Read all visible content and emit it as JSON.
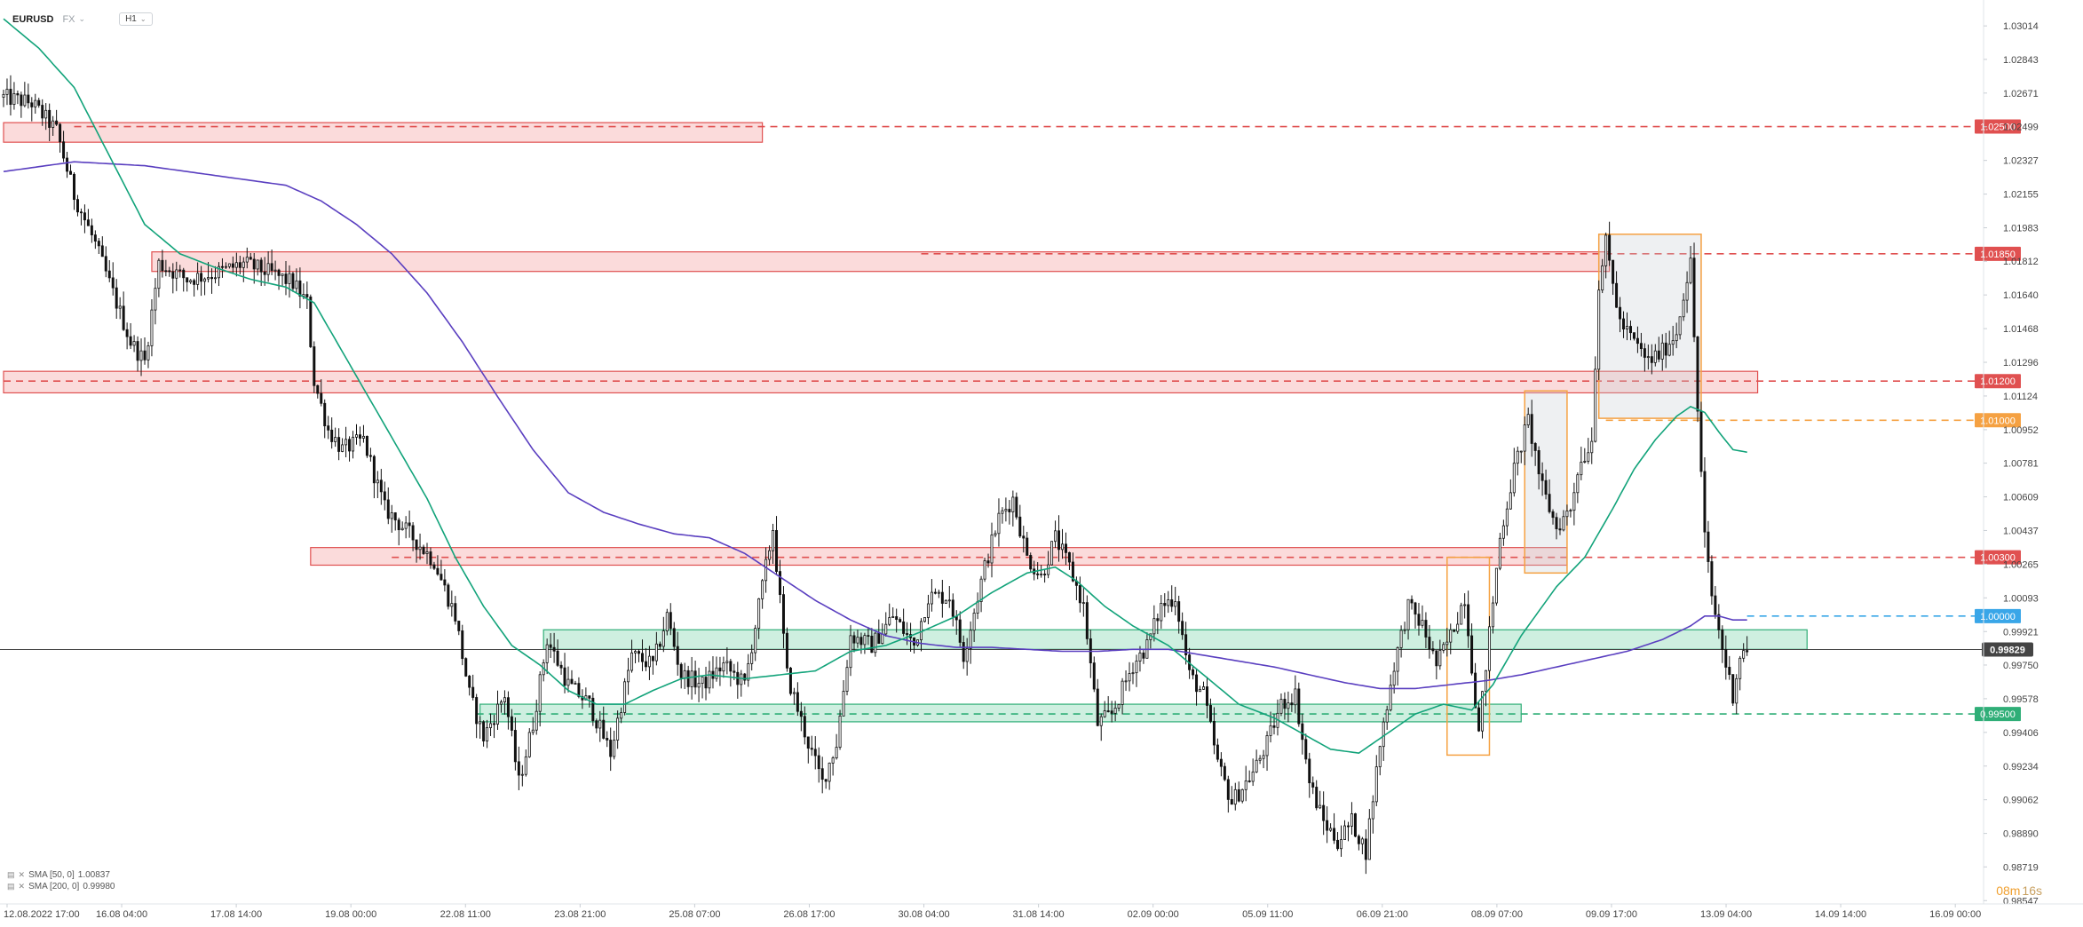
{
  "header": {
    "symbol": "EURUSD",
    "market": "FX",
    "timeframe": "H1"
  },
  "indicators": [
    {
      "label": "SMA [50, 0]",
      "value": "1.00837",
      "color": "#12a37a"
    },
    {
      "label": "SMA [200, 0]",
      "value": "0.99980",
      "color": "#5a3fc0"
    }
  ],
  "timer": {
    "minutes": "08m",
    "seconds": "16s"
  },
  "colors": {
    "bull": "#111111",
    "bear": "#111111",
    "sma50": "#12a37a",
    "sma200": "#5a3fc0",
    "resistance_fill": "rgba(240,110,110,0.25)",
    "resistance_stroke": "#e05050",
    "support_fill": "rgba(60,190,130,0.25)",
    "support_stroke": "#2fae77",
    "orange": "#f5a142",
    "gray_fill": "rgba(200,205,212,0.30)",
    "price_line": "#444444",
    "blue": "#39a6e8"
  },
  "chart_data": {
    "type": "candlestick",
    "symbol": "EURUSD",
    "timeframe": "H1",
    "y_ticks": [
      "1.03014",
      "1.02843",
      "1.02671",
      "1.02499",
      "1.02327",
      "1.02155",
      "1.01983",
      "1.01812",
      "1.01640",
      "1.01468",
      "1.01296",
      "1.01124",
      "1.00952",
      "1.00781",
      "1.00609",
      "1.00437",
      "1.00265",
      "1.00093",
      "0.99921",
      "0.99750",
      "0.99578",
      "0.99406",
      "0.99234",
      "0.99062",
      "0.98890",
      "0.98719",
      "0.98547"
    ],
    "ylim": [
      0.9853,
      1.0311
    ],
    "x_ticks": [
      "12.08.2022 17:00",
      "16.08 04:00",
      "17.08 14:00",
      "19.08 00:00",
      "22.08 11:00",
      "23.08 21:00",
      "25.08 07:00",
      "26.08 17:00",
      "30.08 04:00",
      "31.08 14:00",
      "02.09 00:00",
      "05.09 11:00",
      "06.09 21:00",
      "08.09 07:00",
      "09.09 17:00",
      "13.09 04:00",
      "14.09 14:00",
      "16.09 00:00"
    ],
    "bars_total": 560,
    "current_price": "0.99829",
    "current_price_value": 0.99829,
    "last_bar": 494,
    "price_path": [
      [
        0,
        1.0265
      ],
      [
        8,
        1.0262
      ],
      [
        15,
        1.0248
      ],
      [
        20,
        1.0215
      ],
      [
        26,
        1.019
      ],
      [
        30,
        1.017
      ],
      [
        36,
        1.014
      ],
      [
        40,
        1.013
      ],
      [
        44,
        1.018
      ],
      [
        52,
        1.0172
      ],
      [
        60,
        1.0175
      ],
      [
        68,
        1.018
      ],
      [
        76,
        1.0175
      ],
      [
        82,
        1.017
      ],
      [
        86,
        1.016
      ],
      [
        88,
        1.012
      ],
      [
        92,
        1.0095
      ],
      [
        96,
        1.0085
      ],
      [
        102,
        1.009
      ],
      [
        108,
        1.0055
      ],
      [
        116,
        1.004
      ],
      [
        122,
        1.0028
      ],
      [
        128,
        1.0
      ],
      [
        132,
        0.996
      ],
      [
        136,
        0.9938
      ],
      [
        142,
        0.996
      ],
      [
        146,
        0.9915
      ],
      [
        150,
        0.9945
      ],
      [
        154,
        0.9988
      ],
      [
        160,
        0.9965
      ],
      [
        166,
        0.9955
      ],
      [
        172,
        0.993
      ],
      [
        178,
        0.998
      ],
      [
        184,
        0.9975
      ],
      [
        188,
        1.0
      ],
      [
        192,
        0.997
      ],
      [
        198,
        0.9965
      ],
      [
        204,
        0.9975
      ],
      [
        210,
        0.9965
      ],
      [
        214,
        1.0005
      ],
      [
        218,
        1.0045
      ],
      [
        222,
        0.997
      ],
      [
        228,
        0.9935
      ],
      [
        232,
        0.9915
      ],
      [
        236,
        0.9935
      ],
      [
        240,
        0.999
      ],
      [
        246,
        0.9985
      ],
      [
        252,
        1.0
      ],
      [
        258,
        0.9985
      ],
      [
        262,
        1.001
      ],
      [
        268,
        1.001
      ],
      [
        272,
        0.998
      ],
      [
        278,
        1.0025
      ],
      [
        282,
        1.005
      ],
      [
        286,
        1.006
      ],
      [
        290,
        1.003
      ],
      [
        294,
        1.002
      ],
      [
        298,
        1.004
      ],
      [
        302,
        1.0025
      ],
      [
        306,
        1.0005
      ],
      [
        310,
        0.9945
      ],
      [
        314,
        0.995
      ],
      [
        320,
        0.9975
      ],
      [
        324,
        0.9985
      ],
      [
        328,
        1.0005
      ],
      [
        332,
        1.001
      ],
      [
        336,
        0.997
      ],
      [
        340,
        0.996
      ],
      [
        344,
        0.9925
      ],
      [
        348,
        0.9905
      ],
      [
        354,
        0.992
      ],
      [
        358,
        0.9935
      ],
      [
        362,
        0.9955
      ],
      [
        366,
        0.996
      ],
      [
        370,
        0.9915
      ],
      [
        374,
        0.9895
      ],
      [
        378,
        0.9885
      ],
      [
        382,
        0.9895
      ],
      [
        386,
        0.988
      ],
      [
        390,
        0.9935
      ],
      [
        394,
        0.9975
      ],
      [
        398,
        1.0005
      ],
      [
        402,
        0.9995
      ],
      [
        406,
        0.9975
      ],
      [
        410,
        0.999
      ],
      [
        414,
        1.001
      ],
      [
        418,
        0.994
      ],
      [
        420,
        0.9975
      ],
      [
        424,
        1.004
      ],
      [
        428,
        1.0075
      ],
      [
        432,
        1.01
      ],
      [
        436,
        1.0065
      ],
      [
        440,
        1.0045
      ],
      [
        444,
        1.0055
      ],
      [
        446,
        1.0075
      ],
      [
        450,
        1.009
      ],
      [
        452,
        1.017
      ],
      [
        454,
        1.019
      ],
      [
        458,
        1.015
      ],
      [
        462,
        1.014
      ],
      [
        466,
        1.013
      ],
      [
        470,
        1.0135
      ],
      [
        474,
        1.0145
      ],
      [
        476,
        1.0165
      ],
      [
        478,
        1.018
      ],
      [
        480,
        1.0105
      ],
      [
        482,
        1.004
      ],
      [
        484,
        1.001
      ],
      [
        488,
        0.9975
      ],
      [
        490,
        0.996
      ],
      [
        492,
        0.998
      ],
      [
        494,
        0.99829
      ]
    ],
    "sma50_path": [
      [
        0,
        1.0305
      ],
      [
        10,
        1.029
      ],
      [
        20,
        1.027
      ],
      [
        30,
        1.0235
      ],
      [
        40,
        1.02
      ],
      [
        50,
        1.0185
      ],
      [
        60,
        1.0178
      ],
      [
        70,
        1.0172
      ],
      [
        80,
        1.0168
      ],
      [
        88,
        1.016
      ],
      [
        96,
        1.0135
      ],
      [
        104,
        1.011
      ],
      [
        112,
        1.0085
      ],
      [
        120,
        1.006
      ],
      [
        128,
        1.003
      ],
      [
        136,
        1.0005
      ],
      [
        144,
        0.9985
      ],
      [
        152,
        0.9975
      ],
      [
        160,
        0.9962
      ],
      [
        168,
        0.9955
      ],
      [
        176,
        0.9955
      ],
      [
        184,
        0.9962
      ],
      [
        192,
        0.9968
      ],
      [
        200,
        0.997
      ],
      [
        210,
        0.9968
      ],
      [
        220,
        0.997
      ],
      [
        230,
        0.9972
      ],
      [
        240,
        0.9982
      ],
      [
        250,
        0.9985
      ],
      [
        260,
        0.9992
      ],
      [
        270,
        1.0
      ],
      [
        280,
        1.0012
      ],
      [
        290,
        1.0022
      ],
      [
        298,
        1.0025
      ],
      [
        304,
        1.0018
      ],
      [
        312,
        1.0005
      ],
      [
        320,
        0.9995
      ],
      [
        330,
        0.9985
      ],
      [
        340,
        0.997
      ],
      [
        350,
        0.9955
      ],
      [
        360,
        0.9948
      ],
      [
        368,
        0.994
      ],
      [
        376,
        0.9932
      ],
      [
        384,
        0.993
      ],
      [
        392,
        0.994
      ],
      [
        400,
        0.995
      ],
      [
        408,
        0.9955
      ],
      [
        416,
        0.9952
      ],
      [
        422,
        0.9965
      ],
      [
        430,
        0.999
      ],
      [
        440,
        1.0015
      ],
      [
        448,
        1.003
      ],
      [
        456,
        1.0055
      ],
      [
        462,
        1.0075
      ],
      [
        468,
        1.009
      ],
      [
        474,
        1.0102
      ],
      [
        478,
        1.0107
      ],
      [
        482,
        1.0104
      ],
      [
        486,
        1.0094
      ],
      [
        490,
        1.0085
      ],
      [
        494,
        1.00837
      ]
    ],
    "sma200_path": [
      [
        0,
        1.0227
      ],
      [
        20,
        1.0232
      ],
      [
        40,
        1.023
      ],
      [
        60,
        1.0225
      ],
      [
        80,
        1.022
      ],
      [
        90,
        1.0212
      ],
      [
        100,
        1.02
      ],
      [
        110,
        1.0185
      ],
      [
        120,
        1.0165
      ],
      [
        130,
        1.014
      ],
      [
        140,
        1.0112
      ],
      [
        150,
        1.0085
      ],
      [
        160,
        1.0063
      ],
      [
        170,
        1.0053
      ],
      [
        180,
        1.0047
      ],
      [
        190,
        1.0042
      ],
      [
        200,
        1.004
      ],
      [
        210,
        1.0032
      ],
      [
        220,
        1.002
      ],
      [
        230,
        1.0008
      ],
      [
        240,
        0.9998
      ],
      [
        250,
        0.999
      ],
      [
        260,
        0.9986
      ],
      [
        270,
        0.9984
      ],
      [
        280,
        0.9984
      ],
      [
        290,
        0.9983
      ],
      [
        300,
        0.9982
      ],
      [
        310,
        0.9982
      ],
      [
        320,
        0.9983
      ],
      [
        330,
        0.9983
      ],
      [
        340,
        0.998
      ],
      [
        350,
        0.9977
      ],
      [
        360,
        0.9974
      ],
      [
        370,
        0.997
      ],
      [
        380,
        0.9966
      ],
      [
        390,
        0.9963
      ],
      [
        400,
        0.9963
      ],
      [
        410,
        0.9965
      ],
      [
        420,
        0.9967
      ],
      [
        430,
        0.997
      ],
      [
        440,
        0.9974
      ],
      [
        450,
        0.9978
      ],
      [
        460,
        0.9982
      ],
      [
        470,
        0.9988
      ],
      [
        478,
        0.9995
      ],
      [
        482,
        1.0
      ],
      [
        486,
        1.0
      ],
      [
        490,
        0.9998
      ],
      [
        494,
        0.9998
      ]
    ],
    "horizontal_lines": [
      {
        "label": "1.02500",
        "price": 1.025,
        "color": "#e05050",
        "start_bar": 20
      },
      {
        "label": "1.01850",
        "price": 1.0185,
        "color": "#e05050",
        "start_bar": 260
      },
      {
        "label": "1.01200",
        "price": 1.012,
        "color": "#e05050",
        "start_bar": 0
      },
      {
        "label": "1.01000",
        "price": 1.01,
        "color": "#f5a142",
        "start_bar": 454
      },
      {
        "label": "1.00300",
        "price": 1.003,
        "color": "#e05050",
        "start_bar": 110
      },
      {
        "label": "1.00000",
        "price": 1.0,
        "color": "#39a6e8",
        "start_bar": 494
      },
      {
        "label": "0.99500",
        "price": 0.995,
        "color": "#2fae77",
        "start_bar": 134
      }
    ],
    "zones": [
      {
        "kind": "resistance",
        "from_bar": 0,
        "to_bar": 215,
        "price_top": 1.0252,
        "price_bottom": 1.0242
      },
      {
        "kind": "resistance",
        "from_bar": 42,
        "to_bar": 455,
        "price_top": 1.0186,
        "price_bottom": 1.0176
      },
      {
        "kind": "resistance",
        "from_bar": 0,
        "to_bar": 497,
        "price_top": 1.0125,
        "price_bottom": 1.0114
      },
      {
        "kind": "resistance",
        "from_bar": 87,
        "to_bar": 443,
        "price_top": 1.0035,
        "price_bottom": 1.0026
      },
      {
        "kind": "support",
        "from_bar": 153,
        "to_bar": 511,
        "price_top": 0.9993,
        "price_bottom": 0.9983
      },
      {
        "kind": "support",
        "from_bar": 135,
        "to_bar": 430,
        "price_top": 0.9955,
        "price_bottom": 0.9946
      }
    ],
    "boxes": [
      {
        "kind": "orange",
        "from_bar": 409,
        "to_bar": 421,
        "price_top": 1.003,
        "price_bottom": 0.9929
      },
      {
        "kind": "orange-gray",
        "from_bar": 431,
        "to_bar": 443,
        "price_top": 1.0115,
        "price_bottom": 1.0022
      },
      {
        "kind": "orange-gray",
        "from_bar": 452,
        "to_bar": 481,
        "price_top": 1.0195,
        "price_bottom": 1.0101
      }
    ]
  }
}
